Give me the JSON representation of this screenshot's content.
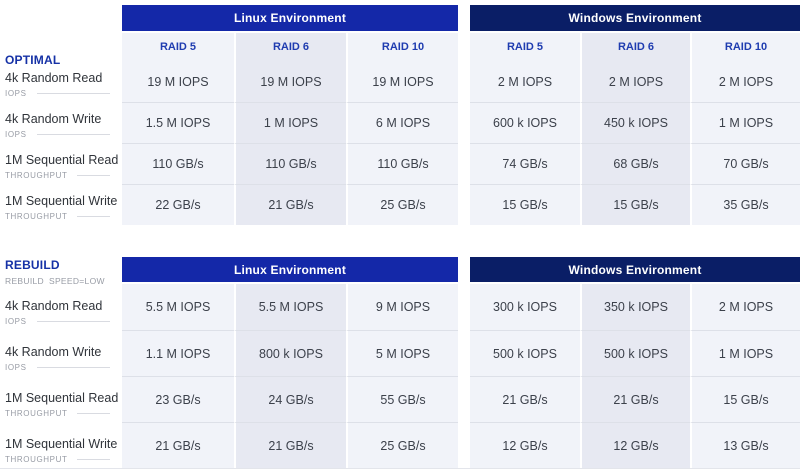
{
  "colors": {
    "linux_header_bg": "#1428a8",
    "windows_header_bg": "#0a1e66",
    "raid_label_blue": "#1f3cb0",
    "section_title_blue": "#1531a6",
    "column_light_bg": "#f1f3f9",
    "column_dark_bg": "#e7e9f2",
    "value_text": "#3c414b",
    "sublabel_gray": "#989ca5"
  },
  "chart_data": [
    {
      "type": "table",
      "title": "OPTIMAL",
      "subtitle": "",
      "row_headers": [
        {
          "label": "4k Random Read",
          "unit": "IOPS"
        },
        {
          "label": "4k Random Write",
          "unit": "IOPS"
        },
        {
          "label": "1M Sequential Read",
          "unit": "THROUGHPUT"
        },
        {
          "label": "1M Sequential Write",
          "unit": "THROUGHPUT"
        }
      ],
      "groups": [
        {
          "name": "Linux Environment",
          "columns": [
            "RAID 5",
            "RAID 6",
            "RAID 10"
          ],
          "rows": [
            [
              "19 M IOPS",
              "19 M IOPS",
              "19 M IOPS"
            ],
            [
              "1.5 M IOPS",
              "1 M IOPS",
              "6 M IOPS"
            ],
            [
              "110 GB/s",
              "110 GB/s",
              "110 GB/s"
            ],
            [
              "22 GB/s",
              "21 GB/s",
              "25 GB/s"
            ]
          ]
        },
        {
          "name": "Windows Environment",
          "columns": [
            "RAID 5",
            "RAID 6",
            "RAID 10"
          ],
          "rows": [
            [
              "2 M IOPS",
              "2 M IOPS",
              "2 M IOPS"
            ],
            [
              "600 k IOPS",
              "450 k IOPS",
              "1 M IOPS"
            ],
            [
              "74 GB/s",
              "68 GB/s",
              "70 GB/s"
            ],
            [
              "15 GB/s",
              "15 GB/s",
              "35 GB/s"
            ]
          ]
        }
      ]
    },
    {
      "type": "table",
      "title": "REBUILD",
      "subtitle": "REBUILD_SPEED=LOW",
      "row_headers": [
        {
          "label": "4k Random Read",
          "unit": "IOPS"
        },
        {
          "label": "4k Random Write",
          "unit": "IOPS"
        },
        {
          "label": "1M Sequential Read",
          "unit": "THROUGHPUT"
        },
        {
          "label": "1M Sequential Write",
          "unit": "THROUGHPUT"
        }
      ],
      "groups": [
        {
          "name": "Linux Environment",
          "columns": [
            "RAID 5",
            "RAID 6",
            "RAID 10"
          ],
          "rows": [
            [
              "5.5 M IOPS",
              "5.5 M IOPS",
              "9 M IOPS"
            ],
            [
              "1.1 M IOPS",
              "800 k IOPS",
              "5 M IOPS"
            ],
            [
              "23 GB/s",
              "24 GB/s",
              "55 GB/s"
            ],
            [
              "21 GB/s",
              "21 GB/s",
              "25 GB/s"
            ]
          ]
        },
        {
          "name": "Windows Environment",
          "columns": [
            "RAID 5",
            "RAID 6",
            "RAID 10"
          ],
          "rows": [
            [
              "300 k IOPS",
              "350 k IOPS",
              "2 M IOPS"
            ],
            [
              "500 k IOPS",
              "500 k IOPS",
              "1 M IOPS"
            ],
            [
              "21 GB/s",
              "21 GB/s",
              "15 GB/s"
            ],
            [
              "12 GB/s",
              "12 GB/s",
              "13 GB/s"
            ]
          ]
        }
      ]
    }
  ]
}
